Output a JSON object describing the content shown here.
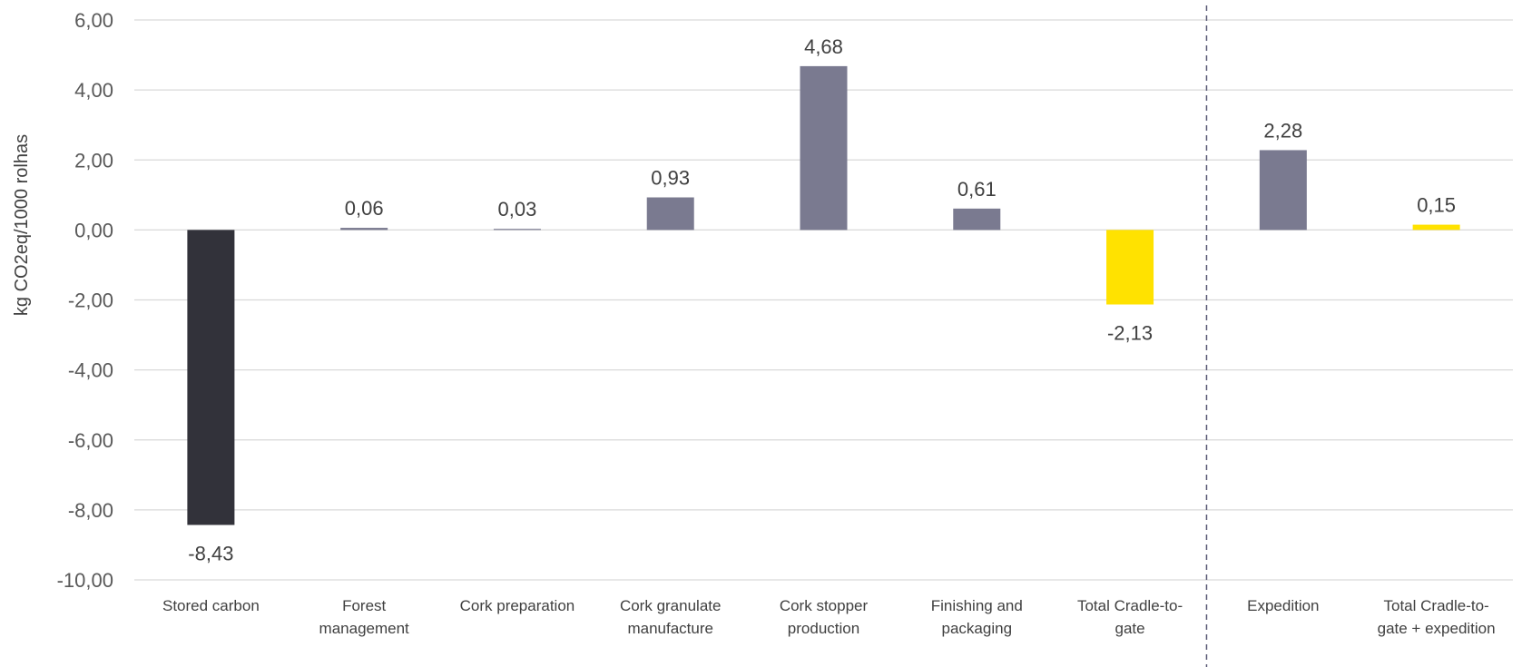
{
  "chart_data": {
    "type": "bar",
    "categories": [
      [
        "Stored carbon"
      ],
      [
        "Forest",
        "management"
      ],
      [
        "Cork preparation"
      ],
      [
        "Cork granulate",
        "manufacture"
      ],
      [
        "Cork stopper",
        "production"
      ],
      [
        "Finishing and",
        "packaging"
      ],
      [
        "Total Cradle-to-",
        "gate"
      ],
      [
        "Expedition"
      ],
      [
        "Total Cradle-to-",
        "gate + expedition"
      ]
    ],
    "values": [
      -8.43,
      0.06,
      0.03,
      0.93,
      4.68,
      0.61,
      -2.13,
      2.28,
      0.15
    ],
    "value_labels": [
      "-8,43",
      "0,06",
      "0,03",
      "0,93",
      "4,68",
      "0,61",
      "-2,13",
      "2,28",
      "0,15"
    ],
    "bar_colors": [
      "#32323a",
      "#7a7a90",
      "#7a7a90",
      "#7a7a90",
      "#7a7a90",
      "#7a7a90",
      "#ffe200",
      "#7a7a90",
      "#ffe200"
    ],
    "ylabel": "kg CO2eq/1000 rolhas",
    "ylim": [
      -10,
      6
    ],
    "yticks": [
      6,
      4,
      2,
      0,
      -2,
      -4,
      -6,
      -8,
      -10
    ],
    "ytick_labels": [
      "6,00",
      "4,00",
      "2,00",
      "0,00",
      "-2,00",
      "-4,00",
      "-6,00",
      "-8,00",
      "-10,00"
    ],
    "grid": true,
    "separator_after_category": 6
  }
}
